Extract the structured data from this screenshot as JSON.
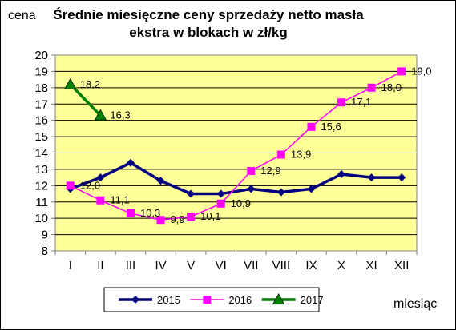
{
  "chart_data": {
    "type": "line",
    "title_line1": "Średnie miesięczne ceny sprzedaży netto masła",
    "title_line2": "ekstra w blokach w zł/kg",
    "ylabel": "cena",
    "xlabel": "miesiąc",
    "categories": [
      "I",
      "II",
      "III",
      "IV",
      "V",
      "VI",
      "VII",
      "VIII",
      "IX",
      "X",
      "XI",
      "XII"
    ],
    "ylim": [
      8,
      20
    ],
    "ytick_step": 1,
    "grid": true,
    "legend_position": "bottom",
    "series": [
      {
        "name": "2015",
        "color": "#000080",
        "marker": "diamond",
        "values": [
          11.8,
          12.5,
          13.4,
          12.3,
          11.5,
          11.5,
          11.8,
          11.6,
          11.8,
          12.7,
          12.5,
          12.5
        ],
        "labels": null
      },
      {
        "name": "2016",
        "color": "#ff00ff",
        "marker": "square",
        "values": [
          12.0,
          11.1,
          10.3,
          9.9,
          10.1,
          10.9,
          12.9,
          13.9,
          15.6,
          17.1,
          18.0,
          19.0
        ],
        "labels": [
          "12,0",
          "11,1",
          "10,3",
          "9,9",
          "10,1",
          "10,9",
          "12,9",
          "13,9",
          "15,6",
          "17,1",
          "18,0",
          "19,0"
        ]
      },
      {
        "name": "2017",
        "color": "#008000",
        "marker": "triangle",
        "values": [
          18.2,
          16.3,
          null,
          null,
          null,
          null,
          null,
          null,
          null,
          null,
          null,
          null
        ],
        "labels": [
          "18,2",
          "16,3"
        ]
      }
    ],
    "colors": {
      "plot_background": "#ffff99",
      "grid": "#000000",
      "axis": "#808080"
    }
  }
}
